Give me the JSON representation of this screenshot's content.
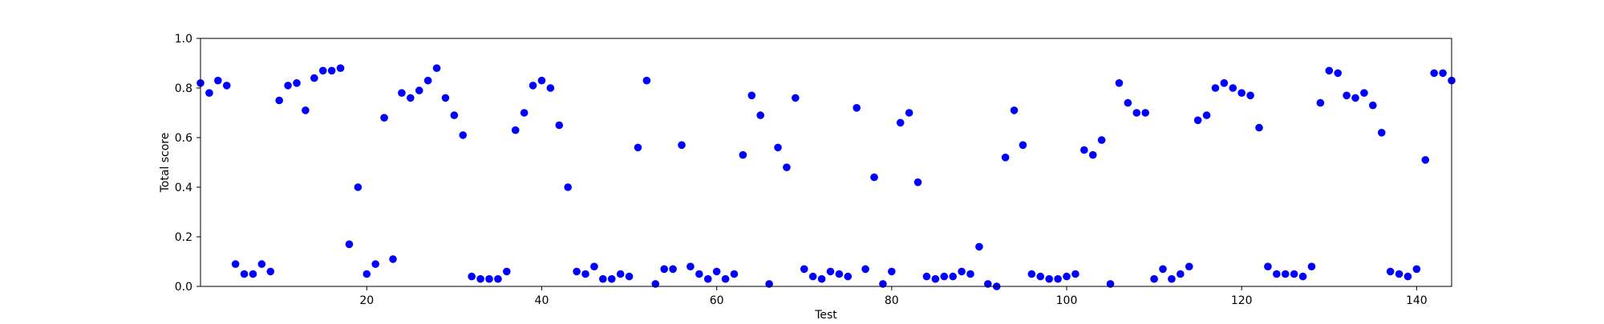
{
  "chart_data": {
    "type": "scatter",
    "title": "",
    "xlabel": "Test",
    "ylabel": "Total score",
    "xlim": [
      1,
      144
    ],
    "ylim": [
      0.0,
      1.0
    ],
    "xticks": [
      20,
      40,
      60,
      80,
      100,
      120,
      140
    ],
    "yticks": [
      0.0,
      0.2,
      0.4,
      0.6,
      0.8,
      1.0
    ],
    "xtick_labels": [
      "20",
      "40",
      "60",
      "80",
      "100",
      "120",
      "140"
    ],
    "ytick_labels": [
      "0.0",
      "0.2",
      "0.4",
      "0.6",
      "0.8",
      "1.0"
    ],
    "grid": false,
    "marker_color": "#0000ff",
    "series": [
      {
        "x": [
          1,
          2,
          3,
          4,
          5,
          6,
          7,
          8,
          9,
          10,
          11,
          12,
          13,
          14,
          15,
          16,
          17,
          18,
          19,
          20,
          21,
          22,
          23,
          24,
          25,
          26,
          27,
          28,
          29,
          30,
          31,
          32,
          33,
          34,
          35,
          36,
          37,
          38,
          39,
          40,
          41,
          42,
          43,
          44,
          45,
          46,
          47,
          48,
          49,
          50,
          51,
          52,
          53,
          54,
          55,
          56,
          57,
          58,
          59,
          60,
          61,
          62,
          63,
          64,
          65,
          66,
          67,
          68,
          69,
          70,
          71,
          72,
          73,
          74,
          75,
          76,
          77,
          78,
          79,
          80,
          81,
          82,
          83,
          84,
          85,
          86,
          87,
          88,
          89,
          90,
          91,
          92,
          93,
          94,
          95,
          96,
          97,
          98,
          99,
          100,
          101,
          102,
          103,
          104,
          105,
          106,
          107,
          108,
          109,
          110,
          111,
          112,
          113,
          114,
          115,
          116,
          117,
          118,
          119,
          120,
          121,
          122,
          123,
          124,
          125,
          126,
          127,
          128,
          129,
          130,
          131,
          132,
          133,
          134,
          135,
          136,
          137,
          138,
          139,
          140,
          141,
          142,
          143,
          144
        ],
        "y": [
          0.82,
          0.78,
          0.83,
          0.81,
          0.09,
          0.05,
          0.05,
          0.09,
          0.06,
          0.75,
          0.81,
          0.82,
          0.71,
          0.84,
          0.87,
          0.87,
          0.88,
          0.17,
          0.4,
          0.05,
          0.09,
          0.68,
          0.11,
          0.78,
          0.76,
          0.79,
          0.83,
          0.88,
          0.76,
          0.69,
          0.61,
          0.04,
          0.03,
          0.03,
          0.03,
          0.06,
          0.63,
          0.7,
          0.81,
          0.83,
          0.8,
          0.65,
          0.4,
          0.06,
          0.05,
          0.08,
          0.03,
          0.03,
          0.05,
          0.04,
          0.56,
          0.83,
          0.01,
          0.07,
          0.07,
          0.57,
          0.08,
          0.05,
          0.03,
          0.06,
          0.03,
          0.05,
          0.53,
          0.77,
          0.69,
          0.01,
          0.56,
          0.48,
          0.76,
          0.07,
          0.04,
          0.03,
          0.06,
          0.05,
          0.04,
          0.72,
          0.07,
          0.44,
          0.01,
          0.06,
          0.66,
          0.7,
          0.42,
          0.04,
          0.03,
          0.04,
          0.04,
          0.06,
          0.05,
          0.16,
          0.01,
          0.0,
          0.52,
          0.71,
          0.57,
          0.05,
          0.04,
          0.03,
          0.03,
          0.04,
          0.05,
          0.55,
          0.53,
          0.59,
          0.01,
          0.82,
          0.74,
          0.7,
          0.7,
          0.03,
          0.07,
          0.03,
          0.05,
          0.08,
          0.67,
          0.69,
          0.8,
          0.82,
          0.8,
          0.78,
          0.77,
          0.64,
          0.08,
          0.05,
          0.05,
          0.05,
          0.04,
          0.08,
          0.74,
          0.87,
          0.86,
          0.77,
          0.76,
          0.78,
          0.73,
          0.62,
          0.06,
          0.05,
          0.04,
          0.07,
          0.51,
          0.86,
          0.86,
          0.83
        ]
      }
    ]
  }
}
